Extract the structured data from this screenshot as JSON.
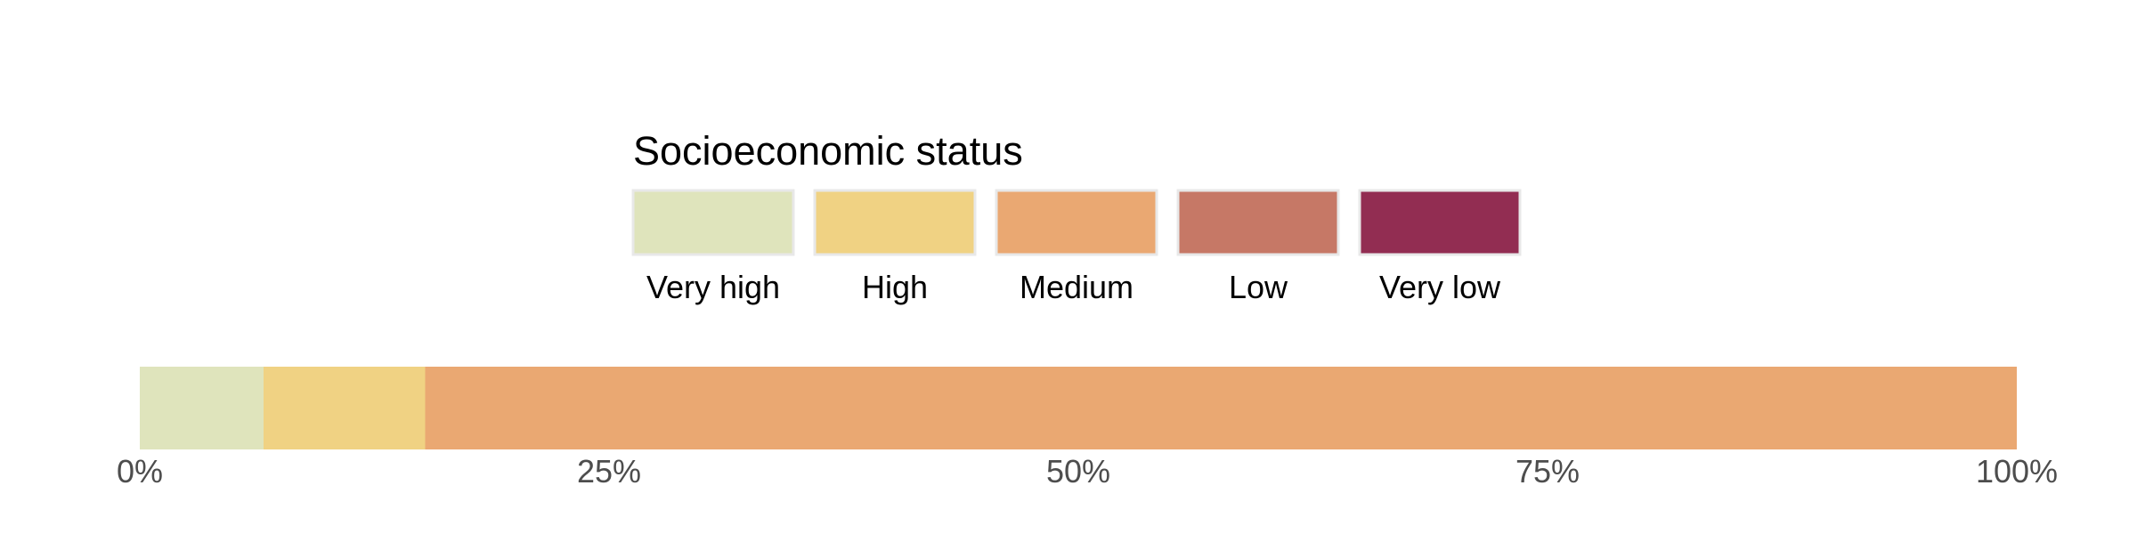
{
  "chart_data": {
    "type": "bar",
    "orientation": "horizontal",
    "stacked": true,
    "legend": {
      "title": "Socioeconomic status",
      "placement": "top-center",
      "entries": [
        {
          "label": "Very high",
          "color": "#dfe4bc"
        },
        {
          "label": "High",
          "color": "#f0d283"
        },
        {
          "label": "Medium",
          "color": "#eaa872"
        },
        {
          "label": "Low",
          "color": "#c67866"
        },
        {
          "label": "Very low",
          "color": "#922d52"
        }
      ]
    },
    "series": [
      {
        "name": "Very high",
        "value": 0.066,
        "color": "#dfe4bc"
      },
      {
        "name": "High",
        "value": 0.086,
        "color": "#f0d283"
      },
      {
        "name": "Medium",
        "value": 0.848,
        "color": "#eaa872"
      },
      {
        "name": "Low",
        "value": 0,
        "color": "#c67866"
      },
      {
        "name": "Very low",
        "value": 0,
        "color": "#922d52"
      }
    ],
    "xlim": [
      0,
      1
    ],
    "x_ticks": [
      {
        "value": 0,
        "label": "0%"
      },
      {
        "value": 0.25,
        "label": "25%"
      },
      {
        "value": 0.5,
        "label": "50%"
      },
      {
        "value": 0.75,
        "label": "75%"
      },
      {
        "value": 1,
        "label": "100%"
      }
    ],
    "grid": false,
    "xlabel": "",
    "ylabel": "",
    "title": ""
  }
}
